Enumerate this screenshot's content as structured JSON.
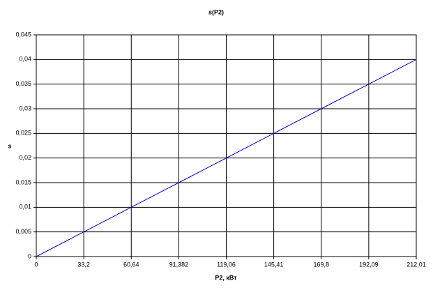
{
  "chart_data": {
    "type": "line",
    "title": "s(P2)",
    "x_label": "P2, кВт",
    "y_label": "s",
    "categories": [
      "0",
      "33,2",
      "60,64",
      "91,382",
      "119,06",
      "145,41",
      "169,8",
      "192,09",
      "212,01"
    ],
    "values": [
      0,
      0.005,
      0.01,
      0.015,
      0.02,
      0.025,
      0.03,
      0.035,
      0.04
    ],
    "color": "#0000cc",
    "ylim": [
      0,
      0.045
    ],
    "yticks": [
      0,
      {
        "value": 0.005,
        "label": "0,005"
      },
      {
        "value": 0.01,
        "label": "0,01"
      },
      {
        "value": 0.015,
        "label": "0,015"
      },
      {
        "value": 0.02,
        "label": "0,02"
      },
      {
        "value": 0.025,
        "label": "0,025"
      },
      {
        "value": 0.03,
        "label": "0,03"
      },
      {
        "value": 0.035,
        "label": "0,035"
      },
      {
        "value": 0.04,
        "label": "0,04"
      },
      {
        "value": 0.045,
        "label": "0,045"
      }
    ],
    "grid": true
  }
}
